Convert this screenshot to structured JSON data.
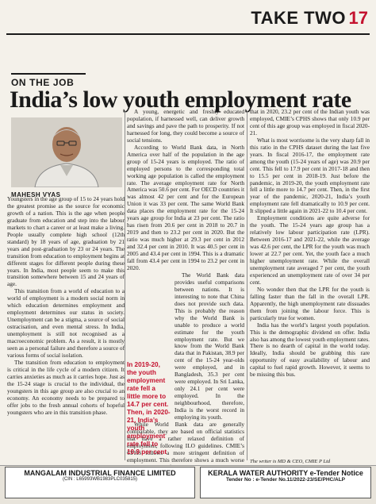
{
  "header": {
    "section": "TAKE TWO",
    "page": "17"
  },
  "article": {
    "kicker": "ON THE JOB",
    "headline": "India’s low youth employment rate",
    "byline": "MAHESH VYAS",
    "col1": [
      "Youngsters in the age group of 15 to 24 years hold the greatest promise as the source for economic growth of a nation. This is the age when people graduate from education and step into the labour markets to chart a career or at least make a living. People usually complete high school (12th standard) by 18 years of age, graduation by 21 years and post-graduation by 23 or 24 years. The transition from education to employment begins at different stages for different people during these years. In India, most people seem to make this transition somewhere between 15 and 24 years of age.",
      "This transition from a world of education to a world of employment is a modern social norm in which education determines employment and employment determines our status in society. Unemployment can be a stigma, a source of social ostracisation, and even mental stress. In India, unemployment is still not recognised as a macroeconomic problem. As a result, it is mostly seen as a personal failure and therefore a source of various forms of social isolation.",
      "The transition from education to employment is critical in the life cycle of a modern citizen. It carries anxieties as much as it carries hope. Just as the 15-24 stage is crucial to the individual, the youngsters in this age group are also crucial to an economy. An economy needs to be prepared to offer jobs to the fresh annual cohorts of hopeful youngsters who are in this transition phase."
    ],
    "col2": [
      "A young, energetic and freshly educated population, if harnessed well, can deliver growth and savings and pave the path to prosperity. If not harnessed for long, they could become a source of social tensions.",
      "According to World Bank data, in North America over half of the population in the age group of 15-24 years is employed. The ratio of employed persons to the corresponding total working age population is called the employment rate. The average employment rate for North America was 50.6 per cent. For OECD countries it was almost 42 per cent and for the European Union it was 33 per cent. The same World Bank data places the employment rate for the 15-24 years age group for India at 23 per cent. The ratio has risen from 20.6 per cent in 2018 to 20.7 in 2019 and then to 23.2 per cent in 2020. But the ratio was much higher at 29.3 per cent in 2012 and 32.4 per cent in 2010. It was 40.5 per cent in 2005 and 43.4 per cent in 1994. This is a dramatic fall from 43.4 per cent in 1994 to 23.2 per cent in 2020.",
      "The World Bank data provides useful comparisons between nations. It is interesting to note that China does not provide such data. This is probably the reason why the World Bank is unable to produce a world estimate for the youth employment rate. But we know from the World Bank data that in Pakistan, 38.9 per cent of the 15-24 year-olds were employed, and in Bangladesh, 35.3 per cent were employed. In Sri Lanka, only 24.1 per cent were employed. In the neighbourhood, therefore, India is the worst record in employing its youth.",
      "While World Bank data are generally comparable, they are based on official statistics that have a rather relaxed definition of employment, following ILO guidelines. CMIE’s CPHS follows a more stringent definition of employment. This therefore shows a much worse employment rate for the youth. While the World Bank shows"
    ],
    "pullquote": "In 2019-20, the youth employment rate fell a little more to 14.7 per cent. Then, in 2020-21, India’s youth employment rate fell to 10.9 per cent",
    "col3": [
      "that in 2020, 23.2 per cent of the Indian youth was employed, CMIE’s CPHS shows that only 10.9 per cent of this age group was employed in fiscal 2020-21.",
      "What is most worrisome is the very sharp fall in this ratio in the CPHS dataset during the last five years. In fiscal 2016-17, the employment rate among the youth (15-24 years of age) was 20.9 per cent. This fell to 17.9 per cent in 2017-18 and then to 15.5 per cent in 2018-19. Just before the pandemic, in 2019-20, the youth employment rate fell a little more to 14.7 per cent. Then, in the first year of the pandemic, 2020-21, India’s youth employment rate fell dramatically to 10.9 per cent. It slipped a little again in 2021-22 to 10.4 per cent.",
      "Employment conditions are quite adverse for the youth. The 15-24 years age group has a relatively low labour participation rate (LPR). Between 2016-17 and 2021-22, while the average was 42.6 per cent, the LPR for the youth was much lower at 22.7 per cent. Yet, the youth face a much higher unemployment rate. While the overall unemployment rate averaged 7 per cent, the youth experienced an unemployment rate of over 34 per cent.",
      "No wonder then that the LPR for the youth is falling faster than the fall in the overall LPR. Apparently, the high unemployment rate dissuades them from joining the labour force. This is particularly true for women.",
      "India has the world’s largest youth population. This is the demographic dividend on offer. India also has among the lowest youth employment rates. There is no dearth of capital in the world today. Ideally, India should be grabbing this rare opportunity of easy availability of labour and capital to fuel rapid growth. However, it seems to be missing this bus."
    ],
    "credit": "The writer is MD & CEO, CMIE P Ltd"
  },
  "ads": {
    "left": {
      "company": "MANGALAM INDUSTRIAL FINANCE LIMITED",
      "cin": "(CIN : L65993WB1983PLC035815)"
    },
    "right": {
      "org": "KERALA WATER AUTHORITY e-Tender Notice",
      "tender": "Tender No : e-Tender No.11/2022-23/SE/PHC/ALP"
    }
  },
  "colors": {
    "accent": "#c4122f",
    "paper": "#f4f1ea"
  }
}
